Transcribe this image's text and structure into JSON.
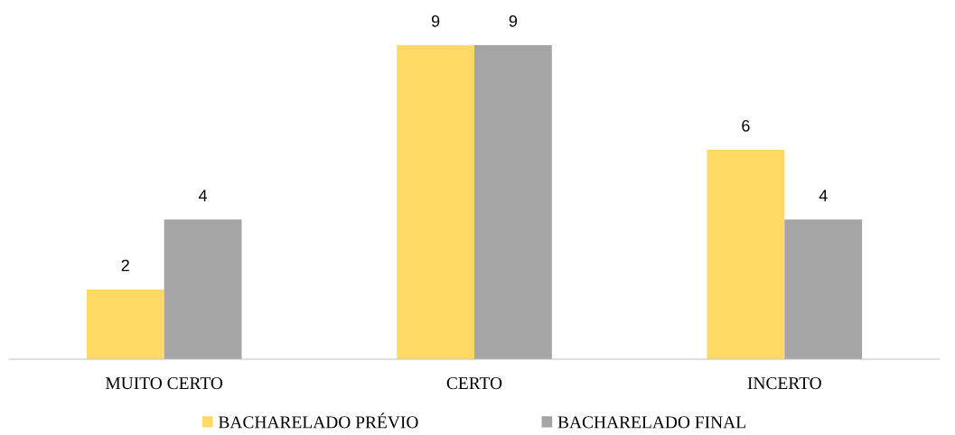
{
  "chart_data": {
    "type": "bar",
    "categories": [
      "MUITO CERTO",
      "CERTO",
      "INCERTO"
    ],
    "series": [
      {
        "name": "BACHARELADO PRÉVIO",
        "color": "#ffd966",
        "values": [
          2,
          9,
          6
        ]
      },
      {
        "name": "BACHARELADO FINAL",
        "color": "#a5a5a5",
        "values": [
          4,
          9,
          4
        ]
      }
    ],
    "data_labels": true,
    "legend": "bottom",
    "grid": false
  }
}
